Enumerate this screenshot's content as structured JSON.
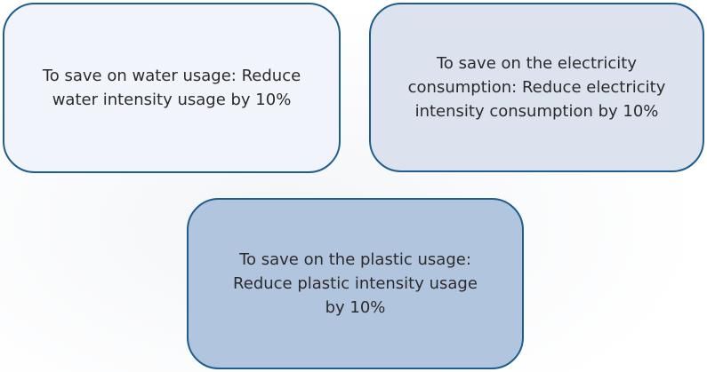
{
  "nodes": [
    {
      "lines": [
        "To save on water usage: Reduce",
        "water intensity usage by 10%"
      ]
    },
    {
      "lines": [
        "To save on the electricity",
        "consumption: Reduce electricity",
        "intensity consumption by 10%"
      ]
    },
    {
      "lines": [
        "To save on the plastic usage:",
        "Reduce plastic intensity usage",
        "by 10%"
      ]
    }
  ]
}
